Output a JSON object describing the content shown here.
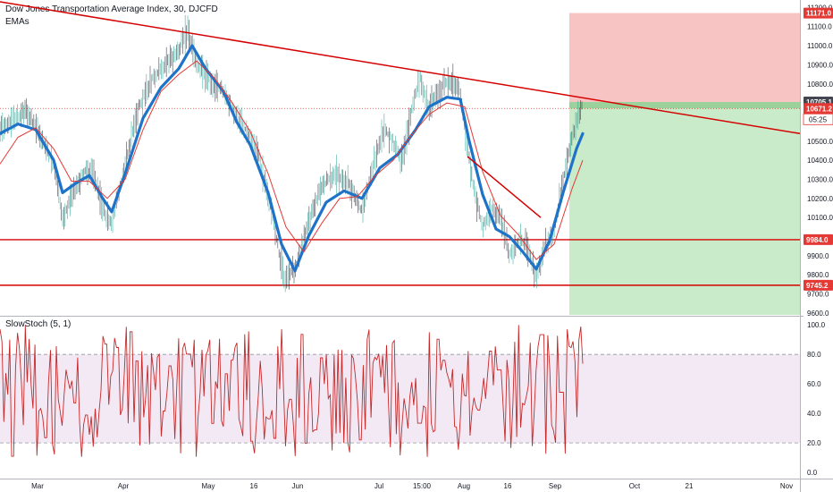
{
  "header": {
    "title": "Dow Jones Transportation Average Index, 30, DJCFD",
    "indicator": "EMAs"
  },
  "oscillator_title": "SlowStoch (5, 1)",
  "countdown": "05:25",
  "colors": {
    "price_line": "#2962ff",
    "wick": "#2a2e39",
    "ema_thick": "#1e73c8",
    "ema_red": "#e53935",
    "trendline": "#d50000",
    "stoch": "#c62828",
    "stop_zone": "#f7b9b9",
    "target_zone": "#bfe7bf",
    "entry_band": "#9bd29b",
    "osc_band": "#f3e9f5"
  },
  "chart_data": [
    {
      "type": "line",
      "title": "Dow Jones Transportation Average Index, 30, DJCFD",
      "ylim": [
        9590,
        11230
      ],
      "yticks": [
        9600.0,
        9700.0,
        9800.0,
        9900.0,
        10100.0,
        10200.0,
        10300.0,
        10400.0,
        10500.0,
        10800.0,
        10900.0,
        11000.0,
        11100.0,
        11200.0
      ],
      "xtick_labels": [
        "Mar",
        "Apr",
        "May",
        "16",
        "Jun",
        "Jul",
        "15:00",
        "Aug",
        "16",
        "Sep",
        "Oct",
        "21",
        "Nov"
      ],
      "price_path": {
        "x": [
          0,
          15,
          30,
          45,
          60,
          70,
          80,
          95,
          105,
          115,
          125,
          140,
          155,
          170,
          185,
          200,
          210,
          220,
          235,
          250,
          262,
          275,
          290,
          305,
          318,
          330,
          345,
          360,
          375,
          390,
          405,
          420,
          430,
          440,
          450,
          462,
          470,
          480,
          495,
          505,
          515,
          522,
          530,
          540,
          550,
          560,
          570,
          580,
          590,
          600,
          610,
          620,
          630,
          640,
          652
        ],
        "y": [
          10560,
          10620,
          10650,
          10530,
          10380,
          10100,
          10200,
          10350,
          10320,
          10150,
          10060,
          10380,
          10680,
          10830,
          10900,
          10980,
          11080,
          10900,
          10820,
          10760,
          10650,
          10560,
          10420,
          10100,
          9780,
          9830,
          10080,
          10260,
          10330,
          10280,
          10130,
          10420,
          10560,
          10500,
          10380,
          10700,
          10830,
          10680,
          10790,
          10820,
          10760,
          10500,
          10250,
          10050,
          10150,
          10100,
          9900,
          9980,
          9960,
          9780,
          9950,
          10010,
          10300,
          10520,
          10700
        ]
      },
      "emas": [
        {
          "style": "thick",
          "x": [
            0,
            20,
            40,
            60,
            70,
            85,
            100,
            115,
            125,
            140,
            160,
            180,
            200,
            215,
            230,
            250,
            265,
            280,
            300,
            315,
            330,
            345,
            365,
            385,
            405,
            425,
            445,
            465,
            480,
            500,
            515,
            525,
            540,
            555,
            570,
            585,
            600,
            615,
            630,
            645,
            652
          ],
          "y": [
            10540,
            10590,
            10560,
            10400,
            10230,
            10280,
            10320,
            10200,
            10130,
            10330,
            10620,
            10780,
            10880,
            11000,
            10880,
            10760,
            10600,
            10480,
            10230,
            9960,
            9820,
            10000,
            10180,
            10240,
            10200,
            10360,
            10430,
            10560,
            10680,
            10730,
            10720,
            10500,
            10220,
            10040,
            10000,
            9920,
            9830,
            9980,
            10230,
            10460,
            10540
          ]
        },
        {
          "style": "thin",
          "x": [
            0,
            20,
            40,
            60,
            80,
            100,
            120,
            140,
            160,
            180,
            200,
            220,
            240,
            260,
            280,
            300,
            320,
            340,
            360,
            380,
            400,
            420,
            440,
            460,
            480,
            500,
            520,
            540,
            560,
            580,
            600,
            620,
            640,
            652
          ],
          "y": [
            10380,
            10520,
            10570,
            10460,
            10290,
            10290,
            10200,
            10300,
            10560,
            10760,
            10850,
            10920,
            10830,
            10700,
            10550,
            10330,
            10050,
            9920,
            10070,
            10200,
            10210,
            10320,
            10400,
            10530,
            10640,
            10700,
            10680,
            10340,
            10110,
            10010,
            9880,
            9960,
            10250,
            10400
          ]
        }
      ],
      "trendlines": [
        {
          "x": [
            0,
            895
          ],
          "y": [
            11230,
            10540
          ]
        },
        {
          "x": [
            523,
            605
          ],
          "y": [
            10420,
            10100
          ]
        }
      ],
      "horizontal_levels": [
        {
          "value": 9984.0,
          "label": "9984.0"
        },
        {
          "value": 9745.2,
          "label": "9745.2"
        }
      ],
      "position": {
        "x_start": 637,
        "x_end": 895,
        "stop": 11171.0,
        "entry_top": 10705.1,
        "entry_bottom": 10671.2,
        "target_below": 9590
      },
      "price_tags": [
        {
          "value": 11171.0,
          "label": "11171.0",
          "color": "#e53935"
        },
        {
          "value": 10705.1,
          "label": "10705.1",
          "color": "#434651"
        },
        {
          "value": 10671.2,
          "label": "10671.2",
          "color": "#e53935"
        },
        {
          "value": 9984.0,
          "label": "9984.0",
          "color": "#e53935"
        },
        {
          "value": 9745.2,
          "label": "9745.2",
          "color": "#e53935"
        }
      ]
    },
    {
      "type": "line",
      "title": "SlowStoch (5, 1)",
      "ylim": [
        -3,
        105
      ],
      "yticks": [
        0.0,
        20.0,
        40.0,
        60.0,
        80.0,
        100.0
      ],
      "bands": [
        20,
        80
      ],
      "series": [
        {
          "x_start": 0,
          "x_end": 652,
          "n": 300,
          "seed": 7
        }
      ]
    }
  ]
}
